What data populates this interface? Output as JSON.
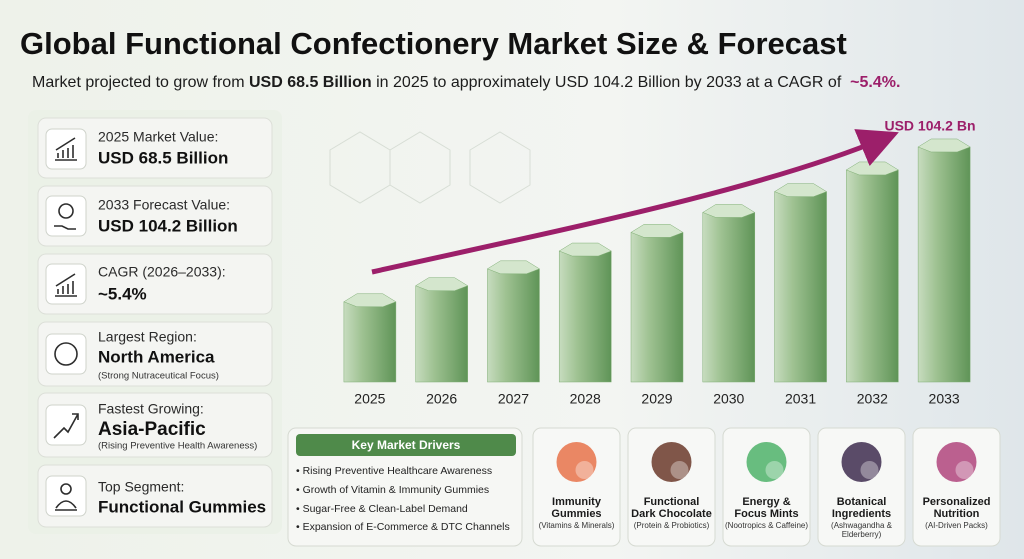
{
  "header": {
    "title": "Global Functional Confectionery Market Size & Forecast",
    "subtitle": [
      "Market projected to grow from ",
      "USD 68.5 Billion",
      " in 2025 to approximately USD 104.2 Billion by 2033 at a CAGR of  ",
      "~5.4%."
    ]
  },
  "stats": [
    {
      "label": "2025 Market Value:",
      "value": "USD 68.5 Billion"
    },
    {
      "label": "2033 Forecast Value:",
      "value": "USD 104.2 Billion"
    },
    {
      "label": "CAGR (2026–2033):",
      "value": "~5.4%"
    },
    {
      "label": "Largest Region:",
      "value": "North America",
      "note": "(Strong Nutraceutical Focus)"
    },
    {
      "label": "Fastest Growing:",
      "value": "Asia-Pacific",
      "note": "(Rising Preventive Health Awareness)"
    },
    {
      "label": "Top Segment:",
      "value": "Functional Gummies"
    }
  ],
  "chart_data": {
    "type": "bar",
    "categories": [
      "2025",
      "2026",
      "2027",
      "2028",
      "2029",
      "2030",
      "2031",
      "2032",
      "2033"
    ],
    "values": [
      68.5,
      72.2,
      76.1,
      80.2,
      84.5,
      89.1,
      93.9,
      98.9,
      104.2
    ],
    "color": "#7fae74",
    "ylim": [
      50,
      105
    ],
    "annotation": "USD 104.2 Bn"
  },
  "drivers": {
    "title": "Key Market Drivers",
    "items": [
      "• Rising Preventive Healthcare Awareness",
      "• Growth of Vitamin & Immunity Gummies",
      "• Sugar-Free & Clean-Label Demand",
      "• Expansion of E-Commerce & DTC Channels"
    ]
  },
  "segments": [
    {
      "name": [
        "Immunity",
        "Gummies"
      ],
      "note": [
        "(Vitamins & Minerals)"
      ],
      "color": "#e8734a"
    },
    {
      "name": [
        "Functional",
        "Dark Chocolate"
      ],
      "note": [
        "(Protein & Probiotics)"
      ],
      "color": "#6b3a2a"
    },
    {
      "name": [
        "Energy &",
        "Focus Mints"
      ],
      "note": [
        "(Nootropics & Caffeine)"
      ],
      "color": "#4fb36a"
    },
    {
      "name": [
        "Botanical",
        "Ingredients"
      ],
      "note": [
        "(Ashwagandha &",
        "Elderberry)"
      ],
      "color": "#3e2d4f"
    },
    {
      "name": [
        "Personalized",
        "Nutrition"
      ],
      "note": [
        "(AI-Driven Packs)"
      ],
      "color": "#b0457d"
    }
  ]
}
